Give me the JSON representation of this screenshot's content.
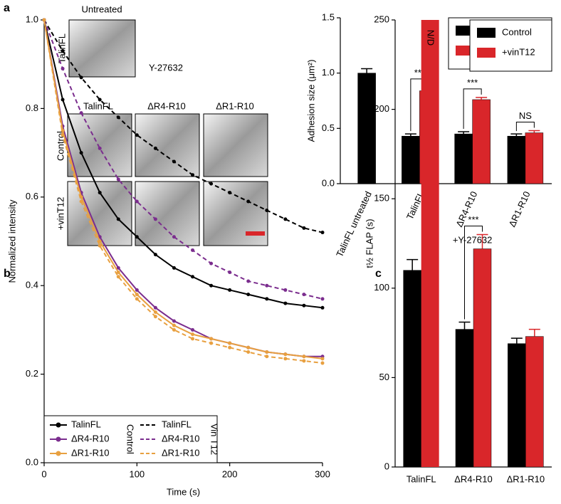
{
  "panel_a_images": {
    "title": "Untreated",
    "row_label": "TalinFL",
    "group_title": "Y-27632",
    "columns": [
      "TalinFL",
      "ΔR4-R10",
      "ΔR1-R10"
    ],
    "rows": [
      "Control",
      "+vinT12"
    ]
  },
  "chart_data": [
    {
      "type": "bar",
      "panel": "a",
      "y_label": "Adhesion size (μm²)",
      "categories": [
        "TalinFL untreated",
        "TalinFL",
        "ΔR4-R10",
        "ΔR1-R10"
      ],
      "group_label": "+Y-27632",
      "series": [
        {
          "name": "Control",
          "color": "#000000",
          "values": [
            1.0,
            0.43,
            0.45,
            0.43
          ],
          "errors": [
            0.04,
            0.02,
            0.02,
            0.02
          ]
        },
        {
          "name": "+vinT12",
          "color": "#d9262a",
          "values": [
            null,
            0.84,
            0.76,
            0.46
          ],
          "errors": [
            null,
            0.03,
            0.02,
            0.02
          ]
        }
      ],
      "annotations": [
        null,
        "***",
        "***",
        "NS"
      ],
      "ylim": [
        0,
        1.5
      ],
      "yticks": [
        {
          "value": 0,
          "label": "0.0"
        },
        0.5,
        {
          "value": 1,
          "label": "1.0"
        },
        1.5
      ],
      "legend": "upper right"
    },
    {
      "type": "line",
      "panel": "b",
      "x_label": "Time (s)",
      "y_label": "Normalized intensity",
      "x": [
        0,
        20,
        40,
        60,
        80,
        100,
        120,
        140,
        160,
        180,
        200,
        220,
        240,
        260,
        280,
        300
      ],
      "legend_groups": [
        "Control",
        "Vin T12"
      ],
      "series": [
        {
          "name": "TalinFL",
          "color": "#000000",
          "dashed": false,
          "values": [
            1.0,
            0.82,
            0.7,
            0.61,
            0.55,
            0.51,
            0.47,
            0.44,
            0.42,
            0.4,
            0.39,
            0.38,
            0.37,
            0.36,
            0.355,
            0.35
          ]
        },
        {
          "name": "ΔR4-R10",
          "color": "#7b2d8e",
          "dashed": false,
          "values": [
            1.0,
            0.76,
            0.61,
            0.51,
            0.44,
            0.39,
            0.35,
            0.32,
            0.3,
            0.28,
            0.27,
            0.26,
            0.25,
            0.245,
            0.24,
            0.24
          ]
        },
        {
          "name": "ΔR1-R10",
          "color": "#e8a040",
          "dashed": false,
          "values": [
            1.0,
            0.75,
            0.6,
            0.5,
            0.43,
            0.38,
            0.34,
            0.31,
            0.29,
            0.28,
            0.27,
            0.26,
            0.25,
            0.245,
            0.24,
            0.235
          ]
        },
        {
          "name": "TalinFL",
          "color": "#000000",
          "dashed": true,
          "values": [
            1.0,
            0.93,
            0.87,
            0.82,
            0.78,
            0.74,
            0.71,
            0.68,
            0.65,
            0.63,
            0.61,
            0.59,
            0.57,
            0.55,
            0.53,
            0.52
          ]
        },
        {
          "name": "ΔR4-R10",
          "color": "#7b2d8e",
          "dashed": true,
          "values": [
            1.0,
            0.89,
            0.79,
            0.71,
            0.64,
            0.59,
            0.55,
            0.51,
            0.48,
            0.45,
            0.43,
            0.41,
            0.4,
            0.39,
            0.38,
            0.37
          ]
        },
        {
          "name": "ΔR1-R10",
          "color": "#e8a040",
          "dashed": true,
          "values": [
            1.0,
            0.74,
            0.59,
            0.49,
            0.42,
            0.37,
            0.33,
            0.3,
            0.28,
            0.27,
            0.26,
            0.25,
            0.24,
            0.235,
            0.23,
            0.225
          ]
        }
      ],
      "xlim": [
        0,
        300
      ],
      "xticks": [
        0,
        100,
        200,
        300
      ],
      "ylim": [
        0,
        1
      ],
      "yticks": [
        {
          "value": 0,
          "label": "0.0"
        },
        0.2,
        0.4,
        0.6,
        0.8,
        {
          "value": 1,
          "label": "1.0"
        }
      ],
      "legend": "lower left"
    },
    {
      "type": "bar",
      "panel": "c",
      "y_label": "t½ FLAP (s)",
      "categories": [
        "TalinFL",
        "ΔR4-R10",
        "ΔR1-R10"
      ],
      "series": [
        {
          "name": "Control",
          "color": "#000000",
          "values": [
            110,
            77,
            69
          ],
          "errors": [
            6,
            4,
            3
          ]
        },
        {
          "name": "+vinT12",
          "color": "#d9262a",
          "values": [
            null,
            122,
            73
          ],
          "errors": [
            null,
            8,
            4
          ],
          "value_labels": [
            "N/D",
            null,
            null
          ]
        }
      ],
      "annotations": [
        null,
        "***",
        null
      ],
      "ylim": [
        0,
        250
      ],
      "yticks": [
        0,
        50,
        100,
        150,
        200,
        250
      ],
      "legend": "upper right"
    }
  ]
}
